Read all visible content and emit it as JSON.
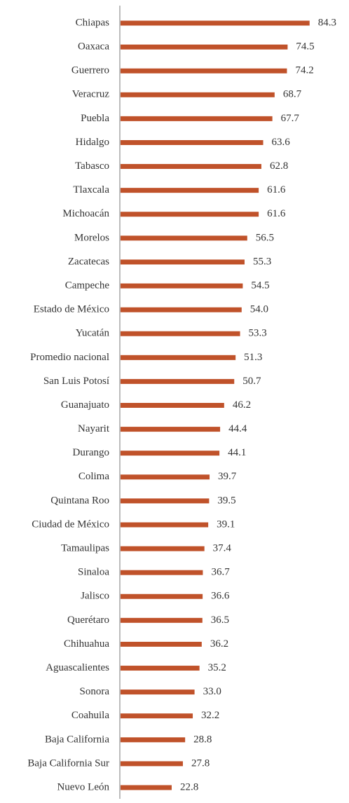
{
  "chart_data": {
    "type": "barh",
    "color": "#c0522a",
    "categories": [
      "Chiapas",
      "Oaxaca",
      "Guerrero",
      "Veracruz",
      "Puebla",
      "Hidalgo",
      "Tabasco",
      "Tlaxcala",
      "Michoacán",
      "Morelos",
      "Zacatecas",
      "Campeche",
      "Estado de México",
      "Yucatán",
      "Promedio nacional",
      "San Luis Potosí",
      "Guanajuato",
      "Nayarit",
      "Durango",
      "Colima",
      "Quintana Roo",
      "Ciudad de México",
      "Tamaulipas",
      "Sinaloa",
      "Jalisco",
      "Querétaro",
      "Chihuahua",
      "Aguascalientes",
      "Sonora",
      "Coahuila",
      "Baja California",
      "Baja California Sur",
      "Nuevo León"
    ],
    "values": [
      84.3,
      74.5,
      74.2,
      68.7,
      67.7,
      63.6,
      62.8,
      61.6,
      61.6,
      56.5,
      55.3,
      54.5,
      54.0,
      53.3,
      51.3,
      50.7,
      46.2,
      44.4,
      44.1,
      39.7,
      39.5,
      39.1,
      37.4,
      36.7,
      36.6,
      36.5,
      36.2,
      35.2,
      33.0,
      32.2,
      28.8,
      27.8,
      22.8
    ],
    "value_labels": [
      "84.3",
      "74.5",
      "74.2",
      "68.7",
      "67.7",
      "63.6",
      "62.8",
      "61.6",
      "61.6",
      "56.5",
      "55.3",
      "54.5",
      "54.0",
      "53.3",
      "51.3",
      "50.7",
      "46.2",
      "44.4",
      "44.1",
      "39.7",
      "39.5",
      "39.1",
      "37.4",
      "36.7",
      "36.6",
      "36.5",
      "36.2",
      "35.2",
      "33.0",
      "32.2",
      "28.8",
      "27.8",
      "22.8"
    ]
  }
}
